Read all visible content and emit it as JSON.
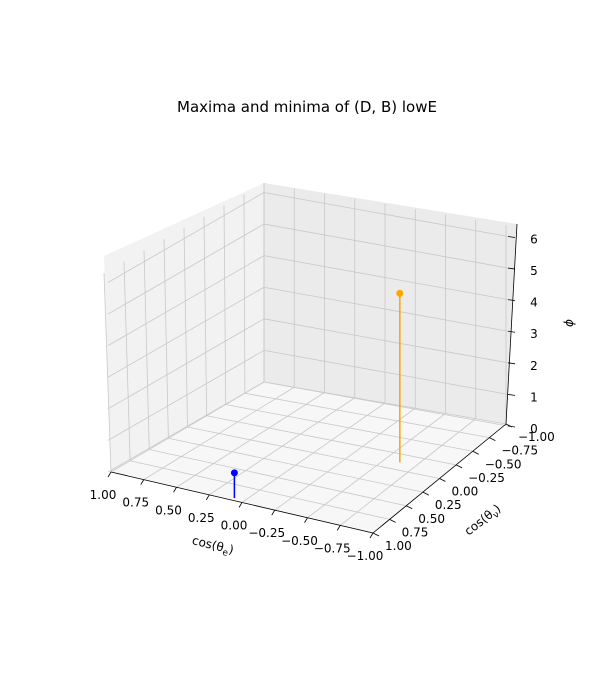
{
  "chart_data": {
    "type": "scatter3d",
    "title": "Maxima and minima of (D, B) lowE",
    "xlabel": "cos(θ_e)",
    "ylabel": "cos(θ_ν)",
    "zlabel": "ϕ",
    "xlim": [
      -1.0,
      1.0
    ],
    "ylim": [
      -1.0,
      1.0
    ],
    "zlim": [
      0,
      6.3
    ],
    "xticks": [
      "1.00",
      "0.75",
      "0.50",
      "0.25",
      "0.00",
      "−0.25",
      "−0.50",
      "−0.75",
      "−1.00"
    ],
    "yticks": [
      "−1.00",
      "−0.75",
      "−0.50",
      "−0.25",
      "0.00",
      "0.25",
      "0.50",
      "0.75",
      "1.00"
    ],
    "zticks": [
      "0",
      "1",
      "2",
      "3",
      "4",
      "5",
      "6"
    ],
    "grid": true,
    "series": [
      {
        "color": "#0000ff",
        "points": [
          {
            "x": 0.08,
            "y": 0.96,
            "z": 0.8
          }
        ]
      },
      {
        "color": "#ffa500",
        "points": [
          {
            "x": -0.62,
            "y": -0.12,
            "z": 5.35
          }
        ]
      }
    ]
  }
}
